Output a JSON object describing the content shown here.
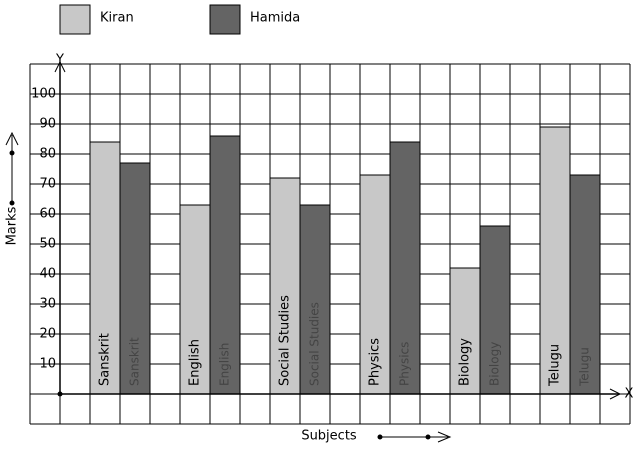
{
  "chart_data": {
    "type": "bar",
    "x_label": "Subjects",
    "y_label": "Marks",
    "x_axis_name": "X",
    "y_axis_name": "Y",
    "categories": [
      "Sanskrit",
      "English",
      "Social Studies",
      "Physics",
      "Biology",
      "Telugu"
    ],
    "series": [
      {
        "name": "Kiran",
        "color": "#c8c8c8",
        "values": [
          84,
          63,
          72,
          73,
          42,
          89
        ]
      },
      {
        "name": "Hamida",
        "color": "#646464",
        "values": [
          77,
          86,
          63,
          84,
          56,
          73
        ]
      }
    ],
    "ylim": [
      -10,
      110
    ],
    "yticks": [
      10,
      20,
      30,
      40,
      50,
      60,
      70,
      80,
      90,
      100
    ],
    "grid": true
  }
}
